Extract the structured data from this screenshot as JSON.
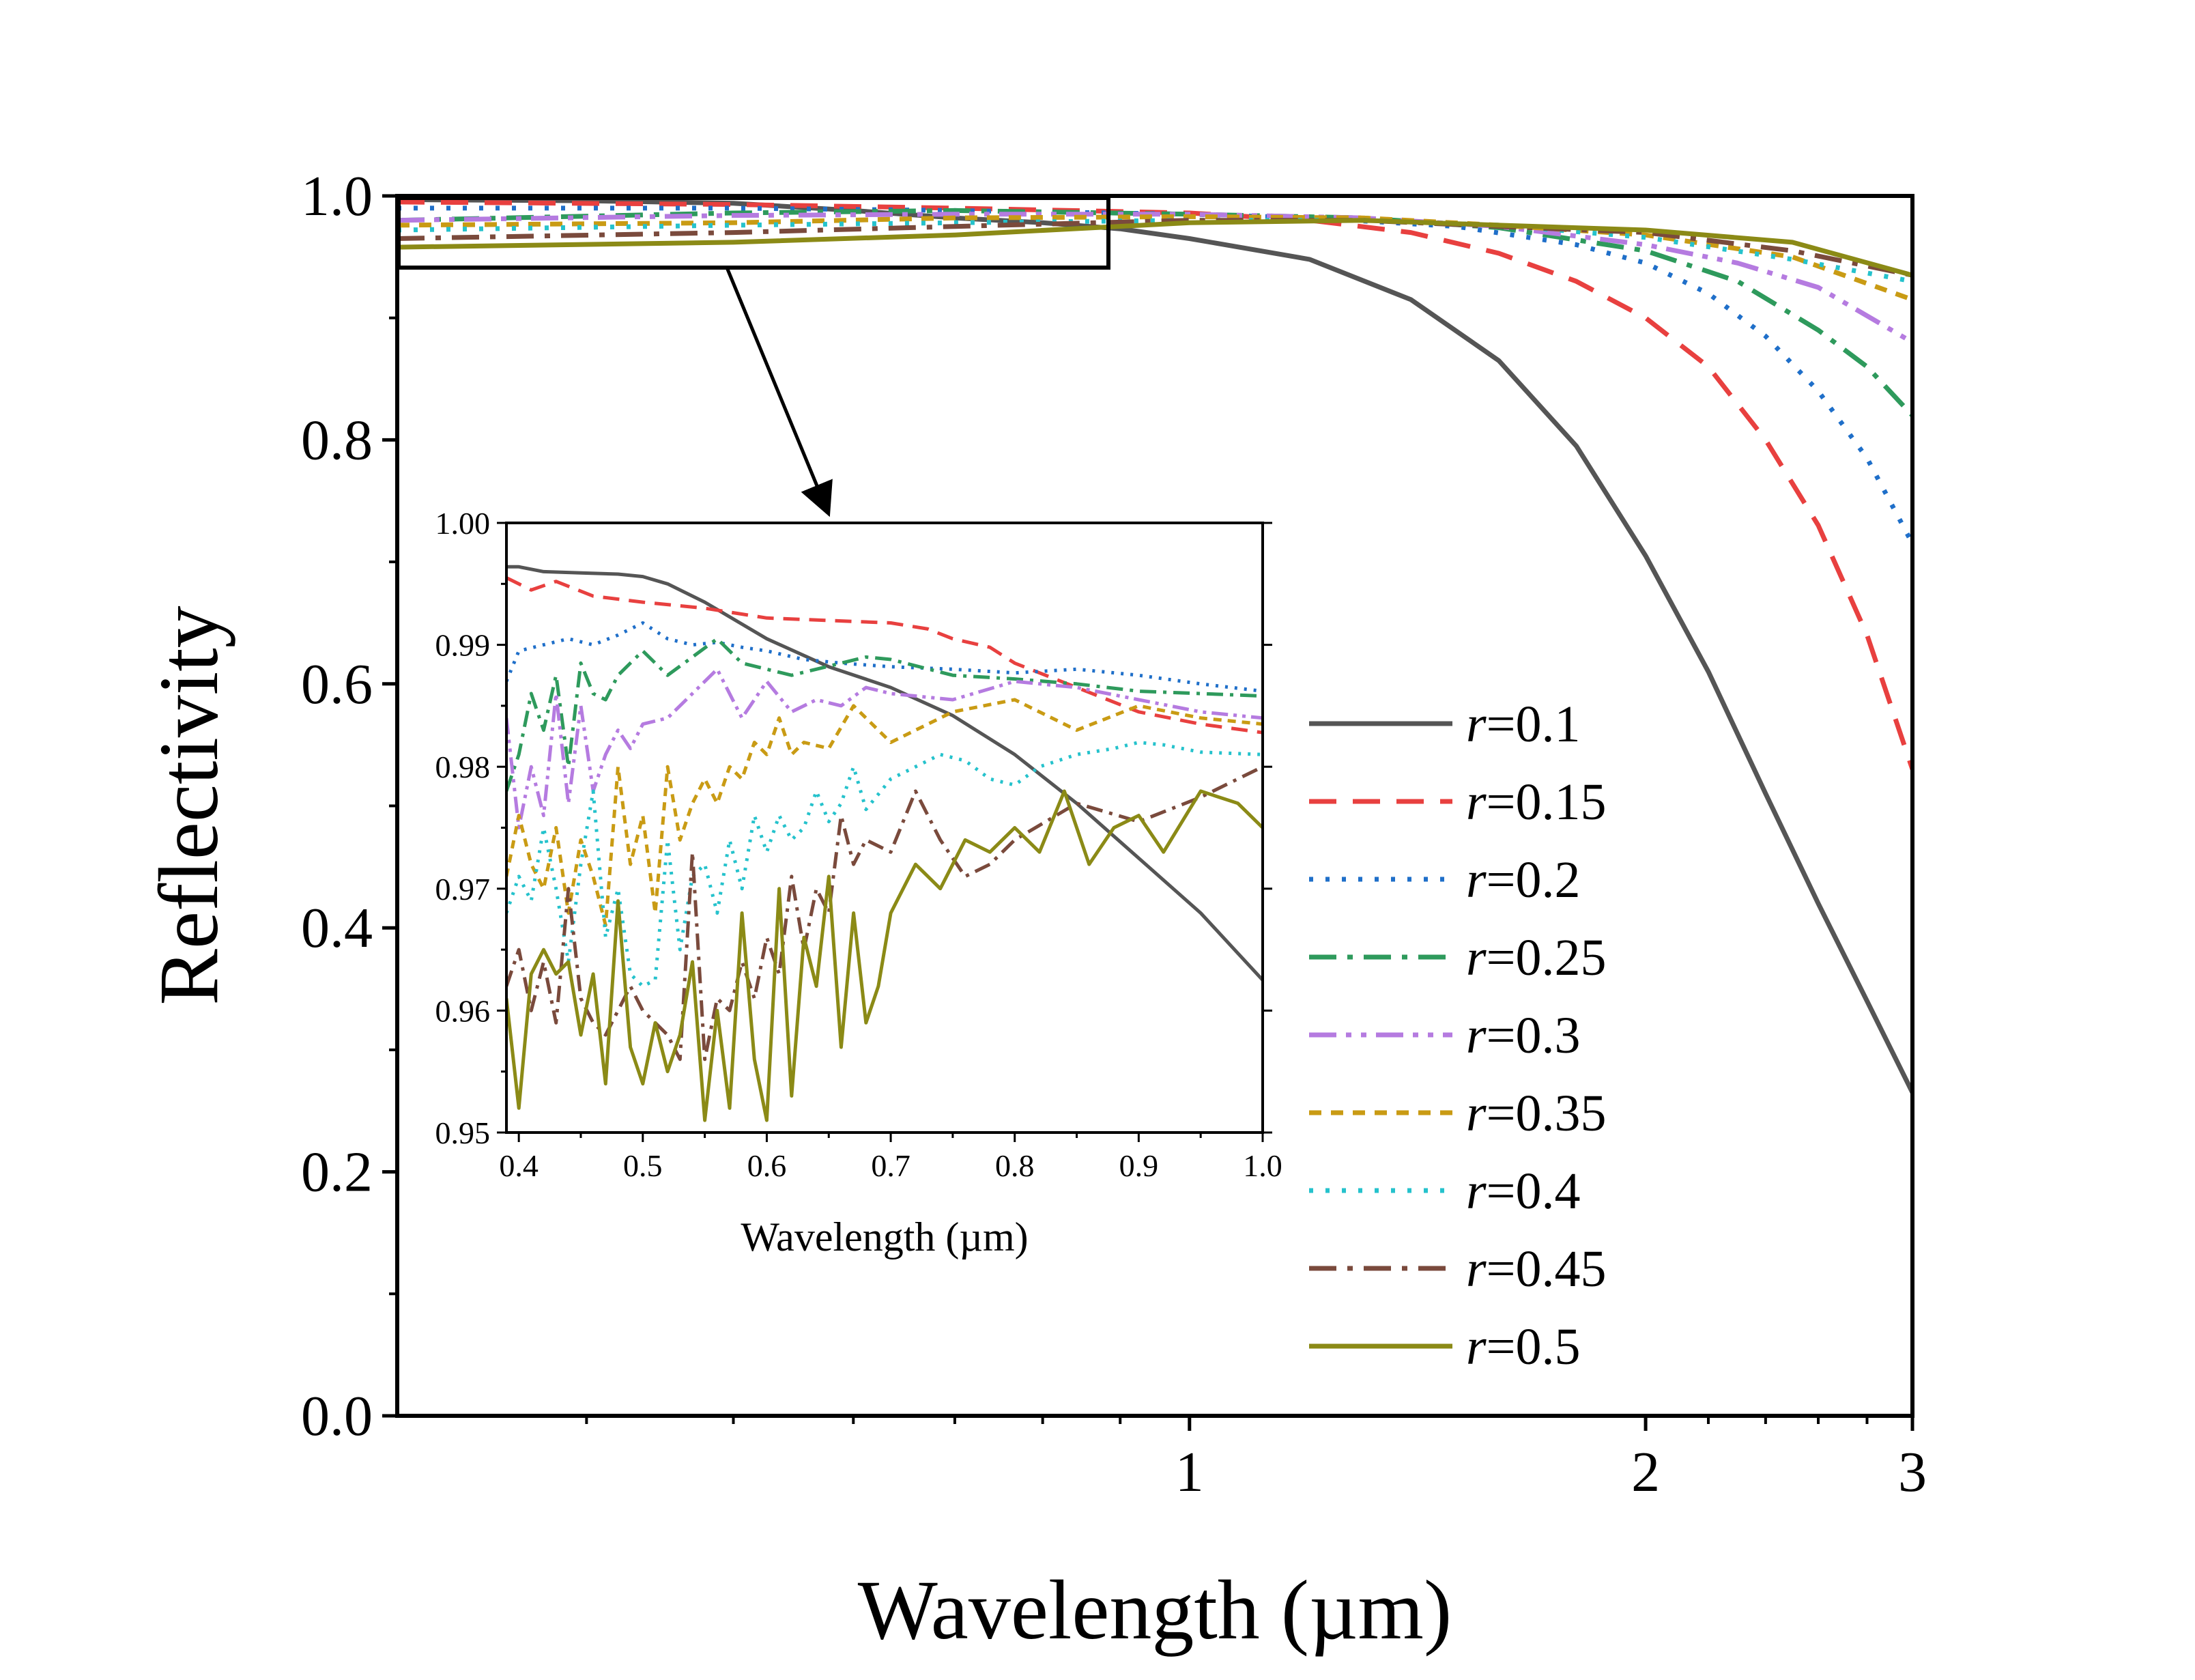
{
  "chart_data": [
    {
      "id": "main",
      "type": "line",
      "xlabel": "Wavelength (µm)",
      "ylabel": "Reflectivity",
      "xscale": "log",
      "xlim": [
        0.3,
        3.0
      ],
      "ylim": [
        0.0,
        1.0
      ],
      "xticks": [
        {
          "value": 1,
          "label": "1"
        },
        {
          "value": 2,
          "label": "2"
        },
        {
          "value": 3,
          "label": "3"
        }
      ],
      "yticks": [
        {
          "value": 0.0,
          "label": "0.0"
        },
        {
          "value": 0.2,
          "label": "0.2"
        },
        {
          "value": 0.4,
          "label": "0.4"
        },
        {
          "value": 0.6,
          "label": "0.6"
        },
        {
          "value": 0.8,
          "label": "0.8"
        },
        {
          "value": 1.0,
          "label": "1.0"
        }
      ],
      "legend_position": "right-middle",
      "series": [
        {
          "name": "r=0.1",
          "var": "r",
          "val": "=0.1",
          "color": "#555555",
          "dash": "solid",
          "x": [
            0.3,
            0.4,
            0.5,
            0.6,
            0.7,
            0.8,
            0.9,
            1.0,
            1.2,
            1.4,
            1.6,
            1.8,
            2.0,
            2.2,
            2.4,
            2.6,
            2.8,
            3.0
          ],
          "values": [
            0.997,
            0.996,
            0.994,
            0.988,
            0.982,
            0.978,
            0.973,
            0.965,
            0.948,
            0.915,
            0.865,
            0.795,
            0.705,
            0.61,
            0.51,
            0.42,
            0.34,
            0.265
          ]
        },
        {
          "name": "r=0.15",
          "var": "r",
          "val": "=0.15",
          "color": "#e8403f",
          "dash": "dash",
          "x": [
            0.3,
            0.5,
            0.7,
            1.0,
            1.2,
            1.4,
            1.6,
            1.8,
            2.0,
            2.2,
            2.4,
            2.6,
            2.8,
            3.0
          ],
          "values": [
            0.995,
            0.993,
            0.99,
            0.986,
            0.98,
            0.97,
            0.953,
            0.93,
            0.9,
            0.86,
            0.8,
            0.73,
            0.64,
            0.53
          ]
        },
        {
          "name": "r=0.2",
          "var": "r",
          "val": "=0.2",
          "color": "#1f6fc9",
          "dash": "dot",
          "x": [
            0.3,
            0.5,
            0.7,
            1.0,
            1.2,
            1.5,
            1.8,
            2.0,
            2.2,
            2.4,
            2.6,
            2.8,
            3.0
          ],
          "values": [
            0.99,
            0.99,
            0.988,
            0.985,
            0.982,
            0.975,
            0.96,
            0.945,
            0.92,
            0.885,
            0.84,
            0.785,
            0.715
          ]
        },
        {
          "name": "r=0.25",
          "var": "r",
          "val": "=0.25",
          "color": "#2e9a5c",
          "dash": "dashdot",
          "x": [
            0.3,
            0.5,
            0.7,
            1.0,
            1.3,
            1.6,
            2.0,
            2.3,
            2.6,
            2.8,
            3.0
          ],
          "values": [
            0.98,
            0.986,
            0.988,
            0.985,
            0.982,
            0.974,
            0.955,
            0.93,
            0.89,
            0.86,
            0.82
          ]
        },
        {
          "name": "r=0.3",
          "var": "r",
          "val": "=0.3",
          "color": "#b57be0",
          "dash": "dashdotdot",
          "x": [
            0.3,
            0.5,
            0.7,
            1.0,
            1.3,
            1.6,
            2.0,
            2.3,
            2.6,
            3.0
          ],
          "values": [
            0.98,
            0.984,
            0.985,
            0.985,
            0.982,
            0.975,
            0.96,
            0.945,
            0.925,
            0.88
          ]
        },
        {
          "name": "r=0.35",
          "var": "r",
          "val": "=0.35",
          "color": "#c99b14",
          "dash": "shortdash",
          "x": [
            0.3,
            0.5,
            0.7,
            1.0,
            1.3,
            1.6,
            2.0,
            2.5,
            3.0
          ],
          "values": [
            0.976,
            0.978,
            0.982,
            0.983,
            0.982,
            0.976,
            0.968,
            0.95,
            0.915
          ]
        },
        {
          "name": "r=0.4",
          "var": "r",
          "val": "=0.4",
          "color": "#25c2cc",
          "dash": "dot",
          "x": [
            0.3,
            0.5,
            0.7,
            1.0,
            1.3,
            1.6,
            2.0,
            2.5,
            3.0
          ],
          "values": [
            0.972,
            0.976,
            0.978,
            0.98,
            0.98,
            0.976,
            0.966,
            0.948,
            0.93
          ]
        },
        {
          "name": "r=0.45",
          "var": "r",
          "val": "=0.45",
          "color": "#7a4a3c",
          "dash": "dashdot",
          "x": [
            0.3,
            0.5,
            0.7,
            1.0,
            1.3,
            1.6,
            2.0,
            2.5,
            3.0
          ],
          "values": [
            0.965,
            0.97,
            0.975,
            0.98,
            0.98,
            0.975,
            0.97,
            0.955,
            0.935
          ]
        },
        {
          "name": "r=0.5",
          "var": "r",
          "val": "=0.5",
          "color": "#8b8a16",
          "dash": "solid",
          "x": [
            0.3,
            0.5,
            0.7,
            1.0,
            1.3,
            1.6,
            2.0,
            2.5,
            3.0
          ],
          "values": [
            0.958,
            0.962,
            0.968,
            0.978,
            0.98,
            0.976,
            0.972,
            0.962,
            0.935
          ]
        }
      ]
    },
    {
      "id": "inset",
      "type": "line",
      "xlabel": "Wavelength (µm)",
      "ylabel": "",
      "xlim": [
        0.39,
        1.0
      ],
      "ylim": [
        0.95,
        1.0
      ],
      "xticks": [
        {
          "value": 0.4,
          "label": "0.4"
        },
        {
          "value": 0.5,
          "label": "0.5"
        },
        {
          "value": 0.6,
          "label": "0.6"
        },
        {
          "value": 0.7,
          "label": "0.7"
        },
        {
          "value": 0.8,
          "label": "0.8"
        },
        {
          "value": 0.9,
          "label": "0.9"
        },
        {
          "value": 1.0,
          "label": "1.0"
        }
      ],
      "yticks": [
        {
          "value": 0.95,
          "label": "0.95"
        },
        {
          "value": 0.96,
          "label": "0.96"
        },
        {
          "value": 0.97,
          "label": "0.97"
        },
        {
          "value": 0.98,
          "label": "0.98"
        },
        {
          "value": 0.99,
          "label": "0.99"
        },
        {
          "value": 1.0,
          "label": "1.00"
        }
      ],
      "series": [
        {
          "name": "r=0.1",
          "color": "#555555",
          "dash": "solid",
          "x": [
            0.39,
            0.4,
            0.42,
            0.45,
            0.48,
            0.5,
            0.52,
            0.55,
            0.6,
            0.65,
            0.7,
            0.75,
            0.8,
            0.85,
            0.9,
            0.95,
            1.0
          ],
          "values": [
            0.9964,
            0.9964,
            0.996,
            0.9959,
            0.9958,
            0.9956,
            0.995,
            0.9935,
            0.9905,
            0.9882,
            0.9865,
            0.9842,
            0.981,
            0.977,
            0.9725,
            0.968,
            0.9625
          ]
        },
        {
          "name": "r=0.15",
          "color": "#e8403f",
          "dash": "dash",
          "x": [
            0.39,
            0.41,
            0.43,
            0.46,
            0.5,
            0.55,
            0.6,
            0.65,
            0.7,
            0.73,
            0.75,
            0.78,
            0.8,
            0.85,
            0.9,
            0.95,
            1.0
          ],
          "values": [
            0.9955,
            0.9945,
            0.9952,
            0.994,
            0.9935,
            0.993,
            0.9922,
            0.992,
            0.9918,
            0.9913,
            0.9905,
            0.9898,
            0.9885,
            0.9865,
            0.9845,
            0.9835,
            0.9828
          ]
        },
        {
          "name": "r=0.2",
          "color": "#1f6fc9",
          "dash": "dot",
          "x": [
            0.39,
            0.4,
            0.42,
            0.44,
            0.46,
            0.48,
            0.5,
            0.52,
            0.54,
            0.56,
            0.58,
            0.6,
            0.63,
            0.66,
            0.7,
            0.75,
            0.8,
            0.85,
            0.9,
            0.95,
            1.0
          ],
          "values": [
            0.987,
            0.9895,
            0.99,
            0.9905,
            0.99,
            0.9908,
            0.9918,
            0.9905,
            0.99,
            0.9902,
            0.9898,
            0.9895,
            0.9888,
            0.9885,
            0.9882,
            0.988,
            0.9877,
            0.988,
            0.9875,
            0.9868,
            0.9862
          ]
        },
        {
          "name": "r=0.25",
          "color": "#2e9a5c",
          "dash": "dashdot",
          "x": [
            0.39,
            0.4,
            0.41,
            0.42,
            0.43,
            0.44,
            0.45,
            0.46,
            0.47,
            0.48,
            0.49,
            0.5,
            0.52,
            0.54,
            0.56,
            0.58,
            0.6,
            0.62,
            0.64,
            0.66,
            0.68,
            0.7,
            0.75,
            0.8,
            0.85,
            0.9,
            0.95,
            1.0
          ],
          "values": [
            0.978,
            0.981,
            0.986,
            0.983,
            0.9875,
            0.98,
            0.9885,
            0.986,
            0.9855,
            0.9875,
            0.9885,
            0.9895,
            0.9875,
            0.989,
            0.9905,
            0.9885,
            0.988,
            0.9875,
            0.988,
            0.9885,
            0.989,
            0.9888,
            0.9875,
            0.9872,
            0.9868,
            0.9862,
            0.986,
            0.9858
          ]
        },
        {
          "name": "r=0.3",
          "color": "#b57be0",
          "dash": "dashdotdot",
          "x": [
            0.39,
            0.4,
            0.41,
            0.42,
            0.43,
            0.44,
            0.45,
            0.46,
            0.47,
            0.48,
            0.49,
            0.5,
            0.52,
            0.54,
            0.56,
            0.58,
            0.6,
            0.62,
            0.64,
            0.66,
            0.68,
            0.7,
            0.75,
            0.8,
            0.85,
            0.9,
            0.95,
            1.0
          ],
          "values": [
            0.984,
            0.975,
            0.98,
            0.976,
            0.986,
            0.977,
            0.985,
            0.978,
            0.981,
            0.983,
            0.9815,
            0.9835,
            0.984,
            0.986,
            0.988,
            0.984,
            0.987,
            0.9845,
            0.9855,
            0.985,
            0.9865,
            0.986,
            0.9855,
            0.987,
            0.9865,
            0.9855,
            0.9845,
            0.984
          ]
        },
        {
          "name": "r=0.35",
          "color": "#c99b14",
          "dash": "shortdash",
          "x": [
            0.39,
            0.4,
            0.41,
            0.42,
            0.43,
            0.44,
            0.45,
            0.46,
            0.47,
            0.48,
            0.49,
            0.5,
            0.51,
            0.52,
            0.53,
            0.54,
            0.55,
            0.56,
            0.57,
            0.58,
            0.59,
            0.6,
            0.61,
            0.62,
            0.63,
            0.65,
            0.67,
            0.7,
            0.72,
            0.75,
            0.8,
            0.85,
            0.9,
            0.95,
            1.0
          ],
          "values": [
            0.971,
            0.976,
            0.972,
            0.97,
            0.975,
            0.968,
            0.974,
            0.971,
            0.967,
            0.98,
            0.972,
            0.976,
            0.968,
            0.98,
            0.974,
            0.977,
            0.979,
            0.977,
            0.98,
            0.979,
            0.982,
            0.981,
            0.984,
            0.981,
            0.982,
            0.9815,
            0.985,
            0.982,
            0.983,
            0.9845,
            0.9855,
            0.983,
            0.985,
            0.984,
            0.9835
          ]
        },
        {
          "name": "r=0.4",
          "color": "#25c2cc",
          "dash": "dot",
          "x": [
            0.39,
            0.4,
            0.41,
            0.42,
            0.43,
            0.44,
            0.45,
            0.46,
            0.47,
            0.48,
            0.49,
            0.5,
            0.51,
            0.52,
            0.53,
            0.54,
            0.55,
            0.56,
            0.57,
            0.58,
            0.59,
            0.6,
            0.61,
            0.62,
            0.63,
            0.64,
            0.65,
            0.66,
            0.67,
            0.68,
            0.7,
            0.72,
            0.74,
            0.76,
            0.78,
            0.8,
            0.82,
            0.85,
            0.88,
            0.9,
            0.92,
            0.95,
            1.0
          ],
          "values": [
            0.968,
            0.971,
            0.969,
            0.975,
            0.97,
            0.964,
            0.972,
            0.978,
            0.966,
            0.97,
            0.963,
            0.962,
            0.9625,
            0.974,
            0.965,
            0.971,
            0.972,
            0.968,
            0.974,
            0.97,
            0.976,
            0.973,
            0.976,
            0.974,
            0.975,
            0.978,
            0.9755,
            0.977,
            0.98,
            0.9765,
            0.979,
            0.98,
            0.981,
            0.9805,
            0.979,
            0.9785,
            0.98,
            0.981,
            0.9815,
            0.982,
            0.9818,
            0.9812,
            0.981
          ]
        },
        {
          "name": "r=0.45",
          "color": "#7a4a3c",
          "dash": "dashdot",
          "x": [
            0.39,
            0.4,
            0.41,
            0.42,
            0.43,
            0.44,
            0.45,
            0.46,
            0.47,
            0.48,
            0.49,
            0.5,
            0.51,
            0.52,
            0.53,
            0.54,
            0.55,
            0.56,
            0.57,
            0.58,
            0.59,
            0.6,
            0.61,
            0.62,
            0.63,
            0.64,
            0.65,
            0.66,
            0.67,
            0.68,
            0.7,
            0.72,
            0.74,
            0.76,
            0.78,
            0.8,
            0.85,
            0.9,
            0.95,
            1.0
          ],
          "values": [
            0.962,
            0.965,
            0.96,
            0.964,
            0.959,
            0.97,
            0.961,
            0.959,
            0.958,
            0.96,
            0.962,
            0.96,
            0.959,
            0.958,
            0.956,
            0.973,
            0.956,
            0.961,
            0.96,
            0.964,
            0.961,
            0.966,
            0.963,
            0.971,
            0.965,
            0.97,
            0.968,
            0.976,
            0.972,
            0.974,
            0.973,
            0.978,
            0.974,
            0.971,
            0.972,
            0.974,
            0.977,
            0.9755,
            0.9775,
            0.98
          ]
        },
        {
          "name": "r=0.5",
          "color": "#8b8a16",
          "dash": "solid",
          "x": [
            0.39,
            0.4,
            0.41,
            0.42,
            0.43,
            0.44,
            0.45,
            0.46,
            0.47,
            0.48,
            0.49,
            0.5,
            0.51,
            0.52,
            0.53,
            0.54,
            0.55,
            0.56,
            0.57,
            0.58,
            0.59,
            0.6,
            0.61,
            0.62,
            0.63,
            0.64,
            0.65,
            0.66,
            0.67,
            0.68,
            0.69,
            0.7,
            0.72,
            0.74,
            0.76,
            0.78,
            0.8,
            0.82,
            0.84,
            0.86,
            0.88,
            0.9,
            0.92,
            0.95,
            0.98,
            1.0
          ],
          "values": [
            0.961,
            0.952,
            0.963,
            0.965,
            0.963,
            0.964,
            0.958,
            0.963,
            0.954,
            0.969,
            0.957,
            0.954,
            0.959,
            0.955,
            0.958,
            0.964,
            0.951,
            0.96,
            0.952,
            0.968,
            0.956,
            0.951,
            0.97,
            0.953,
            0.966,
            0.962,
            0.971,
            0.957,
            0.968,
            0.959,
            0.962,
            0.968,
            0.972,
            0.97,
            0.974,
            0.973,
            0.975,
            0.973,
            0.978,
            0.972,
            0.975,
            0.976,
            0.973,
            0.978,
            0.977,
            0.975
          ]
        }
      ]
    }
  ]
}
